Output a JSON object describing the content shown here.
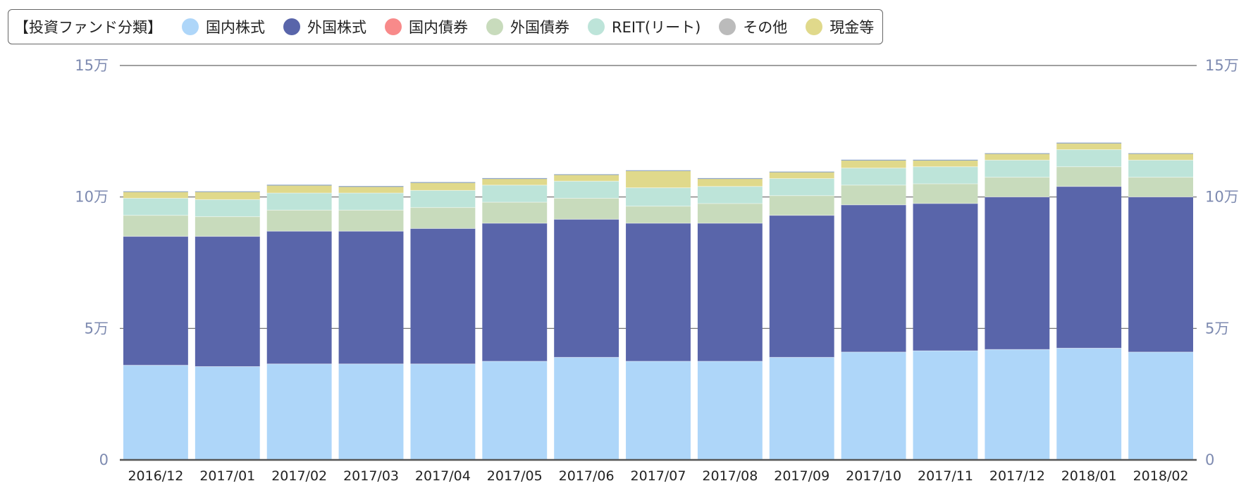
{
  "legend": {
    "title": "【投資ファンド分類】",
    "placement": "top-left"
  },
  "chart_data": {
    "type": "bar",
    "stacked": true,
    "grid": true,
    "categories": [
      "2016/12",
      "2017/01",
      "2017/02",
      "2017/03",
      "2017/04",
      "2017/05",
      "2017/06",
      "2017/07",
      "2017/08",
      "2017/09",
      "2017/10",
      "2017/11",
      "2017/12",
      "2018/01",
      "2018/02"
    ],
    "ylim": [
      0,
      150000
    ],
    "yticks": [
      {
        "value": 0,
        "label": "0"
      },
      {
        "value": 50000,
        "label": "5万"
      },
      {
        "value": 100000,
        "label": "10万"
      },
      {
        "value": 150000,
        "label": "15万"
      }
    ],
    "series": [
      {
        "name": "国内株式",
        "color": "#aed6f9",
        "values": [
          36000,
          35500,
          36500,
          36500,
          36500,
          37500,
          39000,
          37500,
          37500,
          39000,
          41000,
          41500,
          42000,
          42500,
          41000
        ]
      },
      {
        "name": "外国株式",
        "color": "#5965aa",
        "values": [
          49000,
          49500,
          50500,
          50500,
          51500,
          52500,
          52500,
          52500,
          52500,
          54000,
          56000,
          56000,
          58000,
          61500,
          59000
        ]
      },
      {
        "name": "国内債券",
        "color": "#f88a8a",
        "values": [
          0,
          0,
          0,
          0,
          0,
          0,
          0,
          0,
          0,
          0,
          0,
          0,
          0,
          0,
          0
        ]
      },
      {
        "name": "外国債券",
        "color": "#c8dbbc",
        "values": [
          8000,
          7500,
          8000,
          8000,
          8000,
          8000,
          8000,
          6500,
          7500,
          7500,
          7500,
          7500,
          7500,
          7500,
          7500
        ]
      },
      {
        "name": "REIT(リート)",
        "color": "#bde4d9",
        "values": [
          6500,
          6500,
          6500,
          6500,
          6500,
          6500,
          6500,
          7000,
          6500,
          6500,
          6500,
          6500,
          6500,
          6500,
          6500
        ]
      },
      {
        "name": "その他",
        "color": "#bbbbbb",
        "values": [
          0,
          0,
          0,
          0,
          0,
          0,
          0,
          0,
          0,
          0,
          0,
          0,
          0,
          0,
          0
        ]
      },
      {
        "name": "現金等",
        "color": "#e0d98b",
        "values": [
          2500,
          3000,
          3000,
          2500,
          3000,
          2500,
          2500,
          6500,
          3000,
          2500,
          3000,
          2500,
          2500,
          2500,
          2500
        ]
      }
    ]
  }
}
